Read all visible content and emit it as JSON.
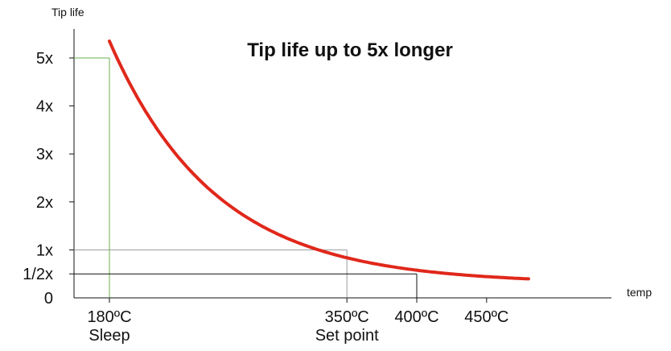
{
  "chart_data": {
    "type": "line",
    "title": "Tip life up to 5x longer",
    "ylabel": "Tip life",
    "xlabel": "temp",
    "x_ticks": [
      {
        "value": 180,
        "label": "180ºC",
        "sublabel": "Sleep"
      },
      {
        "value": 350,
        "label": "350ºC",
        "sublabel": "Set point"
      },
      {
        "value": 400,
        "label": "400ºC",
        "sublabel": ""
      },
      {
        "value": 450,
        "label": "450ºC",
        "sublabel": ""
      }
    ],
    "y_ticks": [
      {
        "value": 0,
        "label": "0"
      },
      {
        "value": 0.5,
        "label": "1/2x"
      },
      {
        "value": 1,
        "label": "1x"
      },
      {
        "value": 2,
        "label": "2x"
      },
      {
        "value": 3,
        "label": "3x"
      },
      {
        "value": 4,
        "label": "4x"
      },
      {
        "value": 5,
        "label": "5x"
      }
    ],
    "xlim": [
      160,
      490
    ],
    "ylim": [
      0,
      5.5
    ],
    "series": [
      {
        "color": "#e0281b",
        "x": [
          180,
          190,
          200,
          210,
          220,
          230,
          240,
          250,
          260,
          270,
          280,
          290,
          300,
          310,
          320,
          330,
          340,
          350,
          360,
          370,
          380,
          390,
          400,
          410,
          420,
          430,
          440,
          450,
          460,
          470,
          480
        ],
        "values": [
          5.35,
          4.55,
          3.9,
          3.35,
          2.9,
          2.52,
          2.2,
          1.93,
          1.7,
          1.52,
          1.38,
          1.26,
          1.15,
          1.08,
          1.03,
          0.99,
          0.96,
          1.0,
          0.83,
          0.72,
          0.64,
          0.59,
          0.55,
          0.5,
          0.45,
          0.4,
          0.36,
          0.33,
          0.31,
          0.3,
          0.3
        ]
      }
    ],
    "reference_lines": [
      {
        "x": 180,
        "y": 5,
        "color": "#6ab04c"
      },
      {
        "x": 350,
        "y": 1,
        "color": "#999999"
      },
      {
        "x": 400,
        "y": 0.5,
        "color": "#111111"
      }
    ],
    "grid": false
  }
}
